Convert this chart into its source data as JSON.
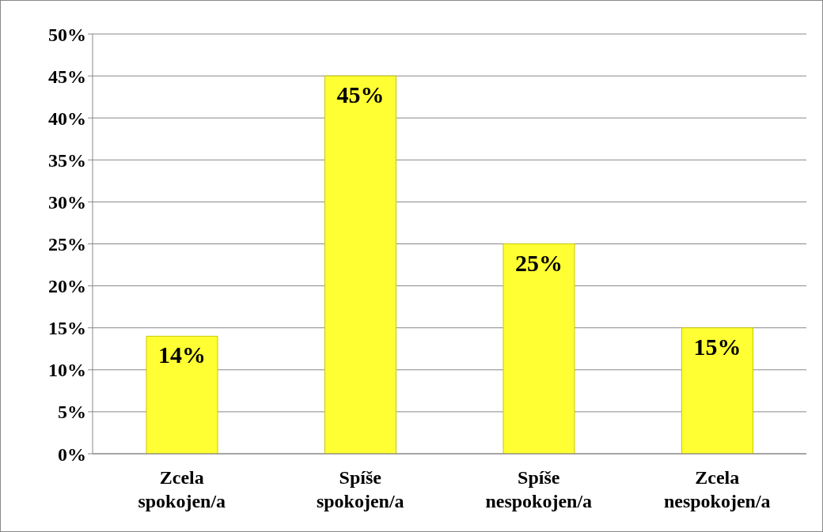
{
  "chart_data": {
    "type": "bar",
    "categories": [
      "Zcela spokojen/a",
      "Spíše spokojen/a",
      "Spíše nespokojen/a",
      "Zcela nespokojen/a"
    ],
    "values": [
      14,
      45,
      25,
      15
    ],
    "value_labels": [
      "14%",
      "45%",
      "25%",
      "15%"
    ],
    "color": "#ffff33",
    "ylim": [
      0,
      50
    ],
    "yticks": [
      {
        "value": 0,
        "label": "0%"
      },
      {
        "value": 5,
        "label": "5%"
      },
      {
        "value": 10,
        "label": "10%"
      },
      {
        "value": 15,
        "label": "15%"
      },
      {
        "value": 20,
        "label": "20%"
      },
      {
        "value": 25,
        "label": "25%"
      },
      {
        "value": 30,
        "label": "30%"
      },
      {
        "value": 35,
        "label": "35%"
      },
      {
        "value": 40,
        "label": "40%"
      },
      {
        "value": 45,
        "label": "45%"
      },
      {
        "value": 50,
        "label": "50%"
      }
    ],
    "grid": "y"
  }
}
